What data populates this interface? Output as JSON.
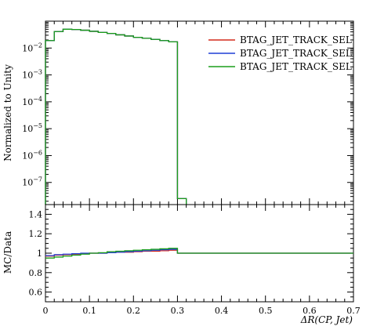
{
  "chart_data": [
    {
      "type": "line",
      "step": true,
      "x_edges": [
        0.0,
        0.02,
        0.04,
        0.06,
        0.08,
        0.1,
        0.12,
        0.14,
        0.16,
        0.18,
        0.2,
        0.22,
        0.24,
        0.26,
        0.28,
        0.3,
        0.32
      ],
      "series": [
        {
          "name": "BTAG_JET_TRACK_SEL",
          "color": "#d42a1c",
          "values": [
            0.019,
            0.041,
            0.05,
            0.049,
            0.046,
            0.042,
            0.038,
            0.035,
            0.031,
            0.028,
            0.025,
            0.023,
            0.021,
            0.019,
            0.017,
            2.5e-08
          ]
        },
        {
          "name": "BTAG_JET_TRACK_SEL",
          "color": "#1f3fd6",
          "values": [
            0.019,
            0.041,
            0.05,
            0.049,
            0.046,
            0.042,
            0.038,
            0.035,
            0.031,
            0.028,
            0.025,
            0.023,
            0.021,
            0.019,
            0.017,
            2.5e-08
          ]
        },
        {
          "name": "BTAG_JET_TRACK_SEL",
          "color": "#1a9e1a",
          "values": [
            0.019,
            0.041,
            0.05,
            0.049,
            0.046,
            0.042,
            0.038,
            0.035,
            0.031,
            0.028,
            0.025,
            0.023,
            0.021,
            0.019,
            0.017,
            2.5e-08
          ]
        }
      ],
      "xlabel": "",
      "ylabel": "Normalized to Unity",
      "xlim": [
        0,
        0.7
      ],
      "ylim": [
        1.5e-08,
        0.1
      ],
      "yscale": "log",
      "yticks": [
        {
          "value": 1e-07,
          "base": "10",
          "exp": "−7"
        },
        {
          "value": 1e-06,
          "base": "10",
          "exp": "−6"
        },
        {
          "value": 1e-05,
          "base": "10",
          "exp": "−5"
        },
        {
          "value": 0.0001,
          "base": "10",
          "exp": "−4"
        },
        {
          "value": 0.001,
          "base": "10",
          "exp": "−3"
        },
        {
          "value": 0.01,
          "base": "10",
          "exp": "−2"
        }
      ],
      "legend": "top-right",
      "grid": false
    },
    {
      "type": "line",
      "step": true,
      "x_edges": [
        0.0,
        0.02,
        0.04,
        0.06,
        0.08,
        0.1,
        0.12,
        0.14,
        0.16,
        0.18,
        0.2,
        0.22,
        0.24,
        0.26,
        0.28,
        0.3,
        0.7
      ],
      "series": [
        {
          "name": "BTAG_JET_TRACK_SEL",
          "color": "#d42a1c",
          "values": [
            0.97,
            0.98,
            0.985,
            0.99,
            0.995,
            1.0,
            1.0,
            1.005,
            1.01,
            1.01,
            1.015,
            1.02,
            1.02,
            1.025,
            1.03,
            1.0
          ]
        },
        {
          "name": "BTAG_JET_TRACK_SEL",
          "color": "#1f3fd6",
          "values": [
            0.975,
            0.985,
            0.99,
            0.995,
            1.0,
            1.0,
            1.0,
            1.005,
            1.01,
            1.015,
            1.02,
            1.025,
            1.03,
            1.035,
            1.04,
            1.0
          ]
        },
        {
          "name": "BTAG_JET_TRACK_SEL",
          "color": "#1a9e1a",
          "values": [
            0.95,
            0.96,
            0.97,
            0.98,
            0.99,
            1.0,
            1.005,
            1.015,
            1.02,
            1.025,
            1.03,
            1.035,
            1.04,
            1.045,
            1.05,
            1.0
          ]
        }
      ],
      "xlabel": "ΔR(CP, Jet)",
      "ylabel": "MC/Data",
      "xlim": [
        0,
        0.7
      ],
      "ylim": [
        0.5,
        1.5
      ],
      "xticks": [
        "0",
        "0.1",
        "0.2",
        "0.3",
        "0.4",
        "0.5",
        "0.6",
        "0.7"
      ],
      "xtick_values": [
        0,
        0.1,
        0.2,
        0.3,
        0.4,
        0.5,
        0.6,
        0.7
      ],
      "yticks": [
        "0.6",
        "0.8",
        "1",
        "1.2",
        "1.4"
      ],
      "ytick_values": [
        0.6,
        0.8,
        1.0,
        1.2,
        1.4
      ],
      "grid": false
    }
  ]
}
